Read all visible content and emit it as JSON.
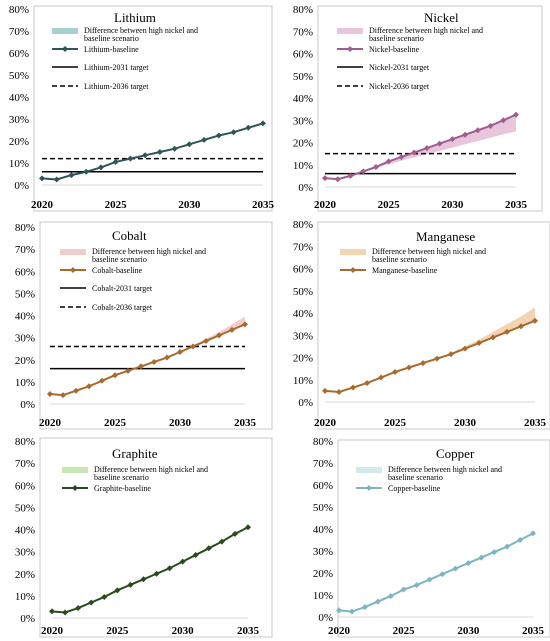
{
  "chart_data": [
    {
      "type": "line",
      "title": "Lithium",
      "x": [
        2020,
        2021,
        2022,
        2023,
        2024,
        2025,
        2026,
        2027,
        2028,
        2029,
        2030,
        2031,
        2032,
        2033,
        2034,
        2035
      ],
      "xticks": [
        "2020",
        "2025",
        "2030",
        "2035"
      ],
      "yticks": [
        "0%",
        "10%",
        "20%",
        "30%",
        "40%",
        "50%",
        "60%",
        "70%",
        "80%"
      ],
      "ylim": [
        0,
        80
      ],
      "color": "#2f5559",
      "band_color": "#a9cfcf",
      "series": [
        {
          "name": "Lithium-baseline",
          "values": [
            3,
            2.5,
            4.5,
            6,
            8,
            10.5,
            12,
            13.5,
            15,
            16.5,
            18.5,
            20.5,
            22.5,
            24,
            26,
            28
          ]
        }
      ],
      "band": {
        "name": "Difference between high nickel and baseline scenario",
        "upper": [
          3,
          2.5,
          4.5,
          6,
          8,
          10.5,
          12,
          13.5,
          15,
          16.5,
          18.5,
          20.5,
          22.5,
          24,
          26,
          28
        ],
        "lower": [
          3,
          2.5,
          4.5,
          6,
          8,
          10.5,
          12,
          13.5,
          15,
          16.5,
          18.5,
          20.5,
          22.5,
          24,
          26,
          28
        ]
      },
      "targets": [
        {
          "name": "Lithium-2031 target",
          "value": 6,
          "style": "solid"
        },
        {
          "name": "Lithium-2036 target",
          "value": 12,
          "style": "dashed"
        }
      ],
      "legend": [
        "Difference between high nickel and",
        "baseline scenario"
      ]
    },
    {
      "type": "line",
      "title": "Nickel",
      "x": [
        2020,
        2021,
        2022,
        2023,
        2024,
        2025,
        2026,
        2027,
        2028,
        2029,
        2030,
        2031,
        2032,
        2033,
        2034,
        2035
      ],
      "xticks": [
        "2020",
        "2025",
        "2030",
        "2035"
      ],
      "yticks": [
        "0%",
        "10%",
        "20%",
        "30%",
        "40%",
        "50%",
        "60%",
        "70%",
        "80%"
      ],
      "ylim": [
        0,
        80
      ],
      "color": "#a05d8f",
      "band_color": "#e7c6dc",
      "series": [
        {
          "name": "Nickel-baseline",
          "values": [
            4,
            3.5,
            5,
            7,
            9,
            11.5,
            13.5,
            15.5,
            17.5,
            19.5,
            21.5,
            23.5,
            25.5,
            27.5,
            30,
            32.5
          ]
        }
      ],
      "band": {
        "name": "Difference between high nickel and baseline scenario",
        "upper": [
          4,
          3.5,
          5,
          7,
          9,
          11.5,
          13.5,
          15.5,
          17.5,
          19.5,
          21.5,
          23.5,
          25.5,
          27.5,
          30,
          32.5
        ],
        "lower": [
          4,
          3.5,
          4.8,
          6.5,
          8.3,
          10.3,
          11.8,
          13.3,
          14.8,
          16.2,
          17.7,
          19.2,
          20.7,
          22.2,
          23.7,
          25
        ]
      },
      "targets": [
        {
          "name": "Nickel-2031 target",
          "value": 6,
          "style": "solid"
        },
        {
          "name": "Nickel-2036 target",
          "value": 15,
          "style": "dashed"
        }
      ],
      "legend": [
        "Difference between high nickel and",
        "baseline scenario"
      ]
    },
    {
      "type": "line",
      "title": "Cobalt",
      "x": [
        2020,
        2021,
        2022,
        2023,
        2024,
        2025,
        2026,
        2027,
        2028,
        2029,
        2030,
        2031,
        2032,
        2033,
        2034,
        2035
      ],
      "xticks": [
        "2020",
        "2025",
        "2030",
        "2035"
      ],
      "yticks": [
        "0%",
        "10%",
        "20%",
        "30%",
        "40%",
        "50%",
        "60%",
        "70%",
        "80%"
      ],
      "ylim": [
        0,
        80
      ],
      "color": "#a86a2e",
      "band_color": "#f3cccc",
      "series": [
        {
          "name": "Cobalt-baseline",
          "values": [
            4.5,
            4,
            6,
            8,
            10.5,
            13,
            15,
            17,
            19,
            21,
            23.5,
            26,
            28.5,
            31,
            33.5,
            36
          ]
        }
      ],
      "band": {
        "name": "Difference between high nickel and baseline scenario",
        "upper": [
          4.5,
          4,
          6,
          8,
          10.5,
          13,
          15,
          17,
          19,
          21,
          23.5,
          26.5,
          29.5,
          32.5,
          36,
          39.5
        ],
        "lower": [
          4.5,
          4,
          6,
          8,
          10.5,
          13,
          15,
          17,
          19,
          21,
          23.5,
          26,
          28.5,
          31,
          33.5,
          36
        ]
      },
      "targets": [
        {
          "name": "Cobalt-2031 target",
          "value": 16,
          "style": "solid"
        },
        {
          "name": "Cobalt-2036 target",
          "value": 26,
          "style": "dashed"
        }
      ],
      "legend": [
        "Difference between high nickel and",
        "baseline scenario"
      ]
    },
    {
      "type": "line",
      "title": "Manganese",
      "x": [
        2020,
        2021,
        2022,
        2023,
        2024,
        2025,
        2026,
        2027,
        2028,
        2029,
        2030,
        2031,
        2032,
        2033,
        2034,
        2035
      ],
      "xticks": [
        "2020",
        "2025",
        "2030",
        "2035"
      ],
      "yticks": [
        "0%",
        "10%",
        "20%",
        "30%",
        "40%",
        "50%",
        "60%",
        "70%",
        "80%"
      ],
      "ylim": [
        0,
        80
      ],
      "color": "#a86a2e",
      "band_color": "#f2d4b0",
      "series": [
        {
          "name": "Manganese-baseline",
          "values": [
            5,
            4.5,
            6.5,
            8.5,
            11,
            13.5,
            15.5,
            17.5,
            19.5,
            21.5,
            24,
            26.5,
            29,
            31.5,
            34,
            36.5
          ]
        }
      ],
      "band": {
        "name": "Difference between high nickel and baseline scenario",
        "upper": [
          5,
          4.5,
          6.5,
          8.5,
          11,
          13.5,
          15.5,
          17.5,
          19.8,
          22,
          25,
          28,
          31.5,
          35,
          38.5,
          42.5
        ],
        "lower": [
          5,
          4.5,
          6.5,
          8.5,
          11,
          13.5,
          15.5,
          17.5,
          19.5,
          21.5,
          24,
          26.5,
          29,
          31.5,
          34,
          36.5
        ]
      },
      "targets": [],
      "legend": [
        "Difference between high nickel and",
        "baseline scenario"
      ]
    },
    {
      "type": "line",
      "title": "Graphite",
      "x": [
        2020,
        2021,
        2022,
        2023,
        2024,
        2025,
        2026,
        2027,
        2028,
        2029,
        2030,
        2031,
        2032,
        2033,
        2034,
        2035
      ],
      "xticks": [
        "2020",
        "2025",
        "2030",
        "2035"
      ],
      "yticks": [
        "0%",
        "10%",
        "20%",
        "30%",
        "40%",
        "50%",
        "60%",
        "70%",
        "80%"
      ],
      "ylim": [
        0,
        80
      ],
      "color": "#2c4a1f",
      "band_color": "#c8e6b4",
      "series": [
        {
          "name": "Graphite-baseline",
          "values": [
            3,
            2.5,
            4.5,
            7,
            9.5,
            12.5,
            15,
            17.5,
            20,
            22.5,
            25.5,
            28.5,
            31.5,
            34.5,
            38,
            41
          ]
        }
      ],
      "band": {
        "name": "Difference between high nickel and baseline scenario",
        "upper": [
          3,
          2.5,
          4.5,
          7,
          9.5,
          12.5,
          15,
          17.5,
          20,
          22.5,
          25.5,
          28.5,
          31.5,
          34.5,
          38,
          41
        ],
        "lower": [
          3,
          2.5,
          4.5,
          7,
          9.5,
          12.5,
          15,
          17.5,
          20,
          22.5,
          25.5,
          28.5,
          31.5,
          34.5,
          38,
          41
        ]
      },
      "targets": [],
      "legend": [
        "Difference between high nickel and",
        "baseline scenario"
      ]
    },
    {
      "type": "line",
      "title": "Copper",
      "x": [
        2020,
        2021,
        2022,
        2023,
        2024,
        2025,
        2026,
        2027,
        2028,
        2029,
        2030,
        2031,
        2032,
        2033,
        2034,
        2035
      ],
      "xticks": [
        "2020",
        "2025",
        "2030",
        "2035"
      ],
      "yticks": [
        "0%",
        "10%",
        "20%",
        "30%",
        "40%",
        "50%",
        "60%",
        "70%",
        "80%"
      ],
      "ylim": [
        0,
        80
      ],
      "color": "#7fb5c0",
      "band_color": "#d3e9ec",
      "series": [
        {
          "name": "Copper-baseline",
          "values": [
            3,
            2.5,
            4.5,
            7,
            9.5,
            12.5,
            14.5,
            17,
            19.5,
            22,
            24.5,
            27,
            29.5,
            32,
            35,
            38
          ]
        }
      ],
      "band": {
        "name": "Difference between high nickel and baseline scenario",
        "upper": [
          3,
          2.5,
          4.5,
          7,
          9.5,
          12.5,
          14.5,
          17,
          19.5,
          22,
          24.5,
          27,
          29.5,
          32,
          35,
          38
        ],
        "lower": [
          3,
          2.5,
          4.5,
          7,
          9.5,
          12.5,
          14.5,
          17,
          19.5,
          22,
          24.5,
          27,
          29.5,
          32,
          35,
          38
        ]
      },
      "targets": [],
      "legend": [
        "Difference between high nickel and",
        "baseline scenario"
      ]
    }
  ]
}
